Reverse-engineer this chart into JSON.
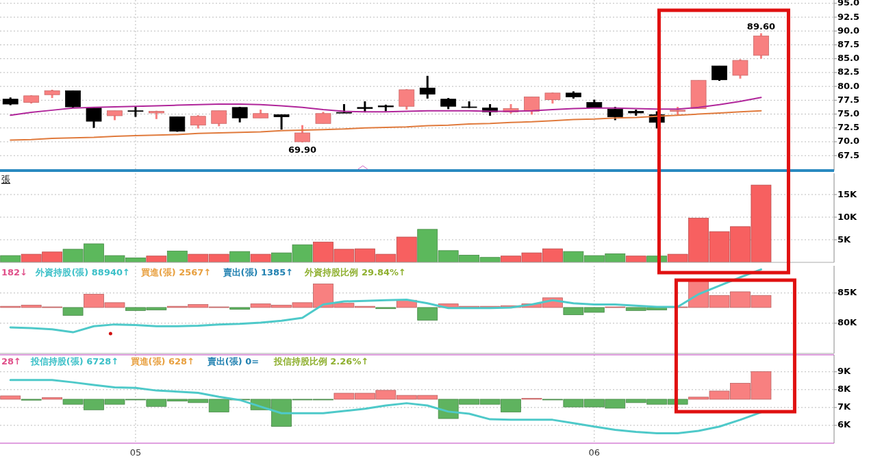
{
  "chart_data": [
    {
      "type": "candlestick",
      "categories": [
        null,
        null,
        null,
        null,
        null,
        null,
        "05",
        null,
        null,
        null,
        null,
        null,
        null,
        null,
        null,
        null,
        null,
        null,
        null,
        null,
        null,
        null,
        null,
        null,
        null,
        null,
        null,
        null,
        "06",
        null,
        null,
        null,
        null,
        null,
        null,
        null,
        null,
        null,
        null,
        null
      ],
      "ohlc": [
        [
          77.7,
          78.0,
          76.6,
          76.8
        ],
        [
          77.1,
          78.4,
          76.9,
          78.3
        ],
        [
          78.5,
          79.4,
          77.9,
          79.2
        ],
        [
          79.2,
          79.2,
          76.1,
          76.3
        ],
        [
          76.1,
          76.3,
          72.5,
          73.7
        ],
        [
          74.7,
          75.6,
          73.9,
          75.6
        ],
        [
          75.5,
          76.3,
          74.5,
          75.6
        ],
        [
          75.2,
          75.6,
          74.1,
          75.5
        ],
        [
          74.5,
          74.5,
          71.8,
          71.9
        ],
        [
          73.0,
          74.8,
          72.4,
          74.6
        ],
        [
          73.3,
          75.6,
          72.8,
          75.6
        ],
        [
          76.2,
          76.3,
          73.5,
          74.3
        ],
        [
          74.3,
          75.8,
          74.3,
          75.1
        ],
        [
          74.9,
          74.9,
          72.2,
          74.5
        ],
        [
          70.0,
          73.0,
          69.9,
          71.6
        ],
        [
          73.3,
          75.4,
          73.3,
          75.1
        ],
        [
          75.2,
          76.8,
          75.2,
          75.3
        ],
        [
          76.2,
          77.3,
          75.3,
          76.0
        ],
        [
          76.5,
          76.7,
          75.5,
          76.3
        ],
        [
          76.4,
          79.5,
          75.8,
          79.4
        ],
        [
          79.7,
          81.9,
          77.8,
          78.6
        ],
        [
          77.7,
          77.9,
          75.9,
          76.4
        ],
        [
          76.3,
          77.3,
          76.1,
          76.2
        ],
        [
          76.1,
          76.8,
          74.7,
          75.4
        ],
        [
          75.4,
          76.8,
          75.1,
          76.0
        ],
        [
          75.5,
          78.1,
          74.9,
          78.1
        ],
        [
          77.6,
          78.9,
          76.9,
          78.8
        ],
        [
          78.8,
          79.1,
          77.8,
          78.1
        ],
        [
          77.1,
          77.6,
          76.1,
          76.1
        ],
        [
          75.9,
          76.3,
          73.9,
          74.5
        ],
        [
          75.5,
          75.8,
          74.7,
          75.2
        ],
        [
          74.9,
          75.5,
          72.4,
          73.5
        ],
        [
          75.5,
          76.3,
          74.8,
          75.7
        ],
        [
          76.0,
          81.1,
          76.0,
          81.1
        ],
        [
          83.7,
          83.7,
          81.0,
          81.2
        ],
        [
          82.0,
          84.9,
          81.4,
          84.7
        ],
        [
          85.6,
          89.6,
          85.0,
          89.1
        ],
        null,
        null,
        null
      ],
      "colors": [
        "#000000",
        "#f88080",
        "#f88080",
        "#000000",
        "#000000",
        "#f88080",
        "#000000",
        "#f88080",
        "#000000",
        "#f88080",
        "#f88080",
        "#000000",
        "#f88080",
        "#000000",
        "#f88080",
        "#f88080",
        "#000000",
        "#000000",
        "#000000",
        "#f88080",
        "#000000",
        "#000000",
        "#000000",
        "#000000",
        "#f88080",
        "#f88080",
        "#f88080",
        "#000000",
        "#000000",
        "#000000",
        "#000000",
        "#000000",
        "#f88080",
        "#f88080",
        "#000000",
        "#f88080",
        "#f88080",
        null,
        null,
        null
      ],
      "series": [
        {
          "type": "line",
          "color": "#b0259a",
          "values": [
            74.8,
            75.3,
            75.7,
            76.1,
            76.2,
            76.3,
            76.4,
            76.5,
            76.6,
            76.7,
            76.8,
            76.8,
            76.7,
            76.5,
            76.2,
            75.8,
            75.5,
            75.4,
            75.4,
            75.5,
            75.6,
            75.6,
            75.6,
            75.5,
            75.5,
            75.6,
            75.8,
            76.0,
            76.1,
            76.1,
            76.0,
            75.9,
            75.9,
            76.2,
            76.7,
            77.3,
            78.0,
            null,
            null,
            null
          ]
        },
        {
          "type": "line",
          "color": "#e07a3c",
          "values": [
            70.3,
            70.4,
            70.6,
            70.7,
            70.8,
            71.0,
            71.1,
            71.2,
            71.3,
            71.5,
            71.6,
            71.7,
            71.8,
            72.0,
            72.1,
            72.2,
            72.3,
            72.5,
            72.6,
            72.7,
            72.9,
            73.0,
            73.2,
            73.3,
            73.5,
            73.6,
            73.8,
            74.0,
            74.1,
            74.3,
            74.4,
            74.6,
            74.8,
            75.0,
            75.2,
            75.4,
            75.6,
            null,
            null,
            null
          ]
        }
      ],
      "ylim": [
        64.8,
        95.6
      ],
      "yticks": [
        {
          "value": 95,
          "label": "95.0"
        },
        92.5,
        {
          "value": 90,
          "label": "90.0"
        },
        87.5,
        {
          "value": 85,
          "label": "85.0"
        },
        82.5,
        {
          "value": 80,
          "label": "80.0"
        },
        77.5,
        {
          "value": 75,
          "label": "75.0"
        },
        72.5,
        {
          "value": 70,
          "label": "70.0"
        },
        67.5
      ],
      "grid": true,
      "tick_labels": "y",
      "annotations": [
        {
          "text": "69.90",
          "y": 69.9
        },
        {
          "text": "89.60",
          "y": 89.6
        }
      ]
    },
    {
      "type": "bar",
      "categories": [
        null,
        null,
        null,
        null,
        null,
        null,
        "05",
        null,
        null,
        null,
        null,
        null,
        null,
        null,
        null,
        null,
        null,
        null,
        null,
        null,
        null,
        null,
        null,
        null,
        null,
        null,
        null,
        null,
        "06",
        null,
        null,
        null,
        null,
        null,
        null,
        null,
        null,
        null,
        null,
        null
      ],
      "ylabel": "張",
      "values": [
        1500,
        1800,
        2300,
        2900,
        4100,
        1500,
        1000,
        1400,
        2500,
        1800,
        1800,
        2400,
        1800,
        2100,
        3900,
        4500,
        2900,
        3000,
        1800,
        5600,
        7300,
        2600,
        1600,
        1100,
        1400,
        2100,
        3000,
        2400,
        1500,
        1900,
        1400,
        1400,
        1800,
        9800,
        6800,
        7900,
        17100,
        null,
        null,
        null
      ],
      "colors": [
        "#5cb85c",
        "#f76060",
        "#f76060",
        "#5cb85c",
        "#5cb85c",
        "#5cb85c",
        "#5cb85c",
        "#f76060",
        "#5cb85c",
        "#f76060",
        "#f76060",
        "#5cb85c",
        "#f76060",
        "#5cb85c",
        "#5cb85c",
        "#f76060",
        "#f76060",
        "#f76060",
        "#f76060",
        "#f76060",
        "#5cb85c",
        "#5cb85c",
        "#5cb85c",
        "#5cb85c",
        "#f76060",
        "#f76060",
        "#f76060",
        "#5cb85c",
        "#5cb85c",
        "#5cb85c",
        "#f76060",
        "#5cb85c",
        "#f76060",
        "#f76060",
        "#f76060",
        "#f76060",
        "#f76060",
        null,
        null,
        null
      ],
      "ylim": [
        0,
        19700
      ],
      "yticks": [
        {
          "value": 5000,
          "label": "5K"
        },
        {
          "value": 10000,
          "label": "10K"
        },
        {
          "value": 15000,
          "label": "15K"
        }
      ],
      "grid": true,
      "tick_labels": "y"
    },
    {
      "type": "bar",
      "categories": [
        null,
        null,
        null,
        null,
        null,
        null,
        "05",
        null,
        null,
        null,
        null,
        null,
        null,
        null,
        null,
        null,
        null,
        null,
        null,
        null,
        null,
        null,
        null,
        null,
        null,
        null,
        null,
        null,
        "06",
        null,
        null,
        null,
        null,
        null,
        null,
        null,
        null,
        null,
        null,
        null
      ],
      "annotations": [
        "182↓",
        "外資持股(張) 88940↑",
        "買進(張) 2567↑",
        "賣出(張) 1385↑",
        "外資持股比例 29.84%↑"
      ],
      "base": [
        82600,
        82600,
        82600,
        82600,
        82600,
        82600,
        82600,
        82600,
        82600,
        82600,
        82600,
        82600,
        82600,
        82600,
        82600,
        82600,
        82600,
        82600,
        82600,
        82600,
        82600,
        82600,
        82600,
        82600,
        82600,
        82600,
        82600,
        82600,
        82600,
        82600,
        82600,
        82600,
        82600,
        82600,
        82600,
        82600,
        82600,
        null,
        null,
        null
      ],
      "values": [
        200,
        400,
        100,
        -1300,
        2200,
        800,
        -500,
        -400,
        200,
        500,
        100,
        -300,
        600,
        400,
        800,
        3900,
        700,
        200,
        -200,
        1200,
        -2100,
        600,
        200,
        200,
        300,
        600,
        1600,
        -1200,
        -800,
        100,
        -500,
        -400,
        100,
        4400,
        2000,
        2600,
        2000,
        null,
        null,
        null
      ],
      "colors": [
        "#f88080",
        "#f88080",
        "#f88080",
        "#5fb35f",
        "#f88080",
        "#f88080",
        "#5fb35f",
        "#5fb35f",
        "#f88080",
        "#f88080",
        "#f88080",
        "#5fb35f",
        "#f88080",
        "#f88080",
        "#f88080",
        "#f88080",
        "#f88080",
        "#f88080",
        "#5fb35f",
        "#f88080",
        "#5fb35f",
        "#f88080",
        "#f88080",
        "#f88080",
        "#f88080",
        "#f88080",
        "#f88080",
        "#5fb35f",
        "#5fb35f",
        "#f88080",
        "#5fb35f",
        "#5fb35f",
        "#f88080",
        "#f88080",
        "#f88080",
        "#f88080",
        "#f88080",
        null,
        null,
        null
      ],
      "series": [
        {
          "type": "line",
          "color": "#4ec9c9",
          "values": [
            79300,
            79200,
            79000,
            78500,
            79500,
            79800,
            79700,
            79500,
            79500,
            79600,
            79800,
            79900,
            80100,
            80400,
            80900,
            83100,
            83600,
            83700,
            83800,
            83900,
            83300,
            82500,
            82500,
            82500,
            82600,
            83100,
            83800,
            83300,
            83100,
            83100,
            82900,
            82700,
            82700,
            84800,
            86200,
            87600,
            88900,
            null,
            null,
            null
          ]
        }
      ],
      "ylim": [
        75000,
        89500
      ],
      "yticks": [
        {
          "value": 80000,
          "label": "80K"
        },
        {
          "value": 85000,
          "label": "85K"
        }
      ],
      "grid": true,
      "tick_labels": "y"
    },
    {
      "type": "bar",
      "categories": [
        null,
        null,
        null,
        null,
        null,
        null,
        "05",
        null,
        null,
        null,
        null,
        null,
        null,
        null,
        null,
        null,
        null,
        null,
        null,
        null,
        null,
        null,
        null,
        null,
        null,
        null,
        null,
        null,
        "06",
        null,
        null,
        null,
        null,
        null,
        null,
        null,
        null,
        null,
        null,
        null
      ],
      "annotations": [
        "28↑",
        "投信持股(張) 6728↑",
        "買進(張) 628↑",
        "賣出(張) 0=",
        "投信持股比例 2.26%↑"
      ],
      "base": [
        7460,
        7460,
        7460,
        7460,
        7460,
        7460,
        7460,
        7460,
        7460,
        7460,
        7460,
        7460,
        7460,
        7460,
        7460,
        7460,
        7460,
        7460,
        7460,
        7460,
        7460,
        7460,
        7460,
        7460,
        7460,
        7460,
        7460,
        7460,
        7460,
        7460,
        7460,
        7460,
        7460,
        7460,
        7460,
        7460,
        7460,
        null,
        null,
        null
      ],
      "values": [
        190,
        -50,
        100,
        -280,
        -590,
        -280,
        0,
        -400,
        -100,
        -190,
        -710,
        0,
        -590,
        -1520,
        0,
        0,
        340,
        340,
        500,
        220,
        220,
        -1080,
        -280,
        -280,
        -710,
        50,
        0,
        -430,
        -430,
        -500,
        -190,
        -280,
        -280,
        120,
        460,
        900,
        1550,
        null,
        null,
        null
      ],
      "colors": [
        "#f88080",
        "#5fb35f",
        "#f88080",
        "#5fb35f",
        "#5fb35f",
        "#5fb35f",
        "#5fb35f",
        "#5fb35f",
        "#5fb35f",
        "#5fb35f",
        "#5fb35f",
        "#5fb35f",
        "#5fb35f",
        "#5fb35f",
        "#5fb35f",
        "#5fb35f",
        "#f88080",
        "#f88080",
        "#f88080",
        "#f88080",
        "#f88080",
        "#5fb35f",
        "#5fb35f",
        "#5fb35f",
        "#5fb35f",
        "#f88080",
        "#5fb35f",
        "#5fb35f",
        "#5fb35f",
        "#5fb35f",
        "#5fb35f",
        "#5fb35f",
        "#5fb35f",
        "#f88080",
        "#f88080",
        "#f88080",
        "#f88080",
        null,
        null,
        null
      ],
      "series": [
        {
          "type": "line",
          "color": "#4ec9c9",
          "values": [
            8540,
            8540,
            8540,
            8410,
            8260,
            8130,
            8100,
            7950,
            7890,
            7820,
            7600,
            7420,
            7050,
            6680,
            6680,
            6680,
            6800,
            6930,
            7110,
            7240,
            7110,
            6770,
            6650,
            6340,
            6310,
            6310,
            6310,
            6120,
            5930,
            5750,
            5630,
            5560,
            5560,
            5690,
            5930,
            6310,
            6730,
            null,
            null,
            null
          ]
        }
      ],
      "ylim": [
        5000,
        9950
      ],
      "yticks": [
        {
          "value": 6000,
          "label": "6K"
        },
        {
          "value": 7000,
          "label": "7K"
        },
        {
          "value": 8000,
          "label": "8K"
        },
        {
          "value": 9000,
          "label": "9K"
        }
      ],
      "grid": true
    }
  ]
}
